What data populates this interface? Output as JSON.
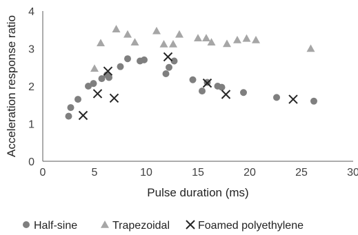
{
  "chart_data": {
    "type": "scatter",
    "xlabel": "Pulse duration (ms)",
    "ylabel": "Acceleration response ratio",
    "xlim": [
      0,
      30
    ],
    "ylim": [
      0,
      4
    ],
    "xticks": [
      "0",
      "5",
      "10",
      "15",
      "20",
      "25",
      "30"
    ],
    "yticks": [
      "0",
      "1",
      "2",
      "3",
      "4"
    ],
    "grid": "none",
    "legend_position": "bottom",
    "series": [
      {
        "name": "Half-sine",
        "marker": "circle",
        "color": "#7f7f7f",
        "points": [
          [
            2.5,
            1.2
          ],
          [
            2.7,
            1.43
          ],
          [
            3.4,
            1.65
          ],
          [
            4.4,
            2.0
          ],
          [
            4.9,
            2.07
          ],
          [
            5.7,
            2.2
          ],
          [
            6.2,
            2.3
          ],
          [
            6.4,
            2.23
          ],
          [
            7.5,
            2.52
          ],
          [
            8.2,
            2.73
          ],
          [
            9.4,
            2.67
          ],
          [
            9.8,
            2.7
          ],
          [
            11.9,
            2.33
          ],
          [
            12.2,
            2.5
          ],
          [
            12.7,
            2.67
          ],
          [
            14.5,
            2.17
          ],
          [
            15.4,
            1.87
          ],
          [
            15.9,
            2.1
          ],
          [
            16.9,
            2.0
          ],
          [
            17.3,
            1.97
          ],
          [
            19.4,
            1.83
          ],
          [
            22.6,
            1.7
          ],
          [
            26.2,
            1.6
          ]
        ]
      },
      {
        "name": "Trapezoidal",
        "marker": "triangle",
        "color": "#a6a6a6",
        "points": [
          [
            5.0,
            2.47
          ],
          [
            5.6,
            3.15
          ],
          [
            7.1,
            3.52
          ],
          [
            8.2,
            3.38
          ],
          [
            8.9,
            3.17
          ],
          [
            11.0,
            3.47
          ],
          [
            11.7,
            3.12
          ],
          [
            12.6,
            3.12
          ],
          [
            13.2,
            3.38
          ],
          [
            15.0,
            3.28
          ],
          [
            15.8,
            3.28
          ],
          [
            16.3,
            3.17
          ],
          [
            17.8,
            3.13
          ],
          [
            18.8,
            3.23
          ],
          [
            19.7,
            3.27
          ],
          [
            20.6,
            3.23
          ],
          [
            25.9,
            3.0
          ]
        ]
      },
      {
        "name": "Foamed polyethylene",
        "marker": "x",
        "color": "#262626",
        "points": [
          [
            3.9,
            1.22
          ],
          [
            5.3,
            1.8
          ],
          [
            6.3,
            2.4
          ],
          [
            6.9,
            1.68
          ],
          [
            12.1,
            2.78
          ],
          [
            15.9,
            2.08
          ],
          [
            17.7,
            1.78
          ],
          [
            24.2,
            1.65
          ]
        ]
      }
    ]
  }
}
